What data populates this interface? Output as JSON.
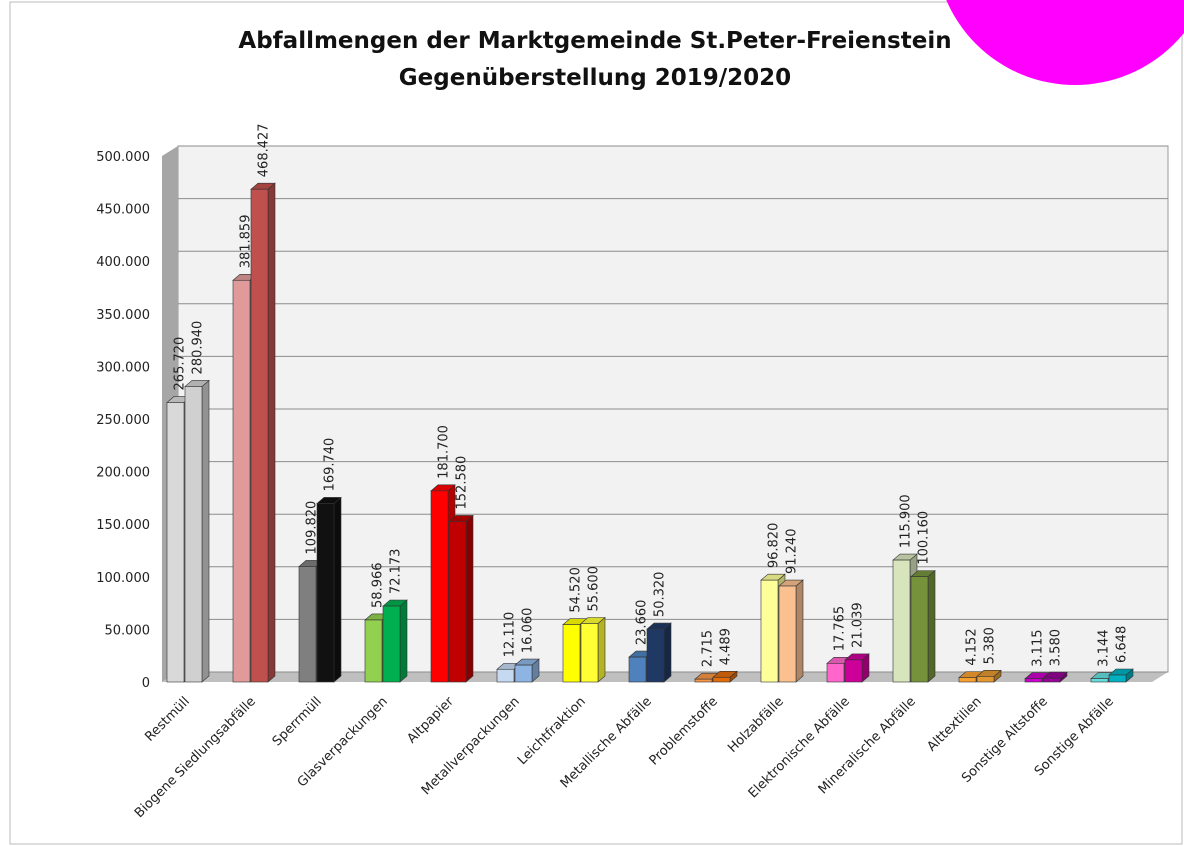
{
  "chart_data": {
    "type": "bar3d",
    "title": [
      "Abfallmengen der Marktgemeinde St.Peter-Freienstein",
      "Gegenüberstellung 2019/2020"
    ],
    "categories": [
      "Restmüll",
      "Biogene Siedlungsabfälle",
      "Sperrmüll",
      "Glasverpackungen",
      "Altpapier",
      "Metallverpackungen",
      "Leichtfraktion",
      "Metallische Abfälle",
      "Problemstoffe",
      "Holzabfälle",
      "Elektronische Abfälle",
      "Mineralische Abfälle",
      "Alttextilien",
      "Sonstige Altstoffe",
      "Sonstige Abfälle"
    ],
    "series": [
      {
        "values": [
          265720,
          381859,
          109820,
          58966,
          181700,
          12110,
          54520,
          23660,
          2715,
          96820,
          17765,
          115900,
          4152,
          3115,
          3144
        ],
        "value_labels": [
          "265.720",
          "381.859",
          "109.820",
          "58.966",
          "181.700",
          "12.110",
          "54.520",
          "23.660",
          "2.715",
          "96.820",
          "17.765",
          "115.900",
          "4.152",
          "3.115",
          "3.144"
        ],
        "colors": [
          "#d9d9d9",
          "#e09a9a",
          "#7f7f7f",
          "#92d050",
          "#ff0000",
          "#c5d9f1",
          "#ffff00",
          "#4f81bd",
          "#f79646",
          "#ffff99",
          "#ff66cc",
          "#d8e4bc",
          "#f7a030",
          "#cc00cc",
          "#66dddd"
        ]
      },
      {
        "values": [
          280940,
          468427,
          169740,
          72173,
          152580,
          16060,
          55600,
          50320,
          4489,
          91240,
          21039,
          100160,
          5380,
          3580,
          6648
        ],
        "value_labels": [
          "280.940",
          "468.427",
          "169.740",
          "72.173",
          "152.580",
          "16.060",
          "55.600",
          "50.320",
          "4.489",
          "91.240",
          "21.039",
          "100.160",
          "5.380",
          "3.580",
          "6.648"
        ],
        "colors": [
          "#d0d0d0",
          "#c0504d",
          "#111111",
          "#00b050",
          "#c00000",
          "#8db4e2",
          "#ffff33",
          "#1f3864",
          "#e26b0a",
          "#fac090",
          "#cc0099",
          "#76933c",
          "#e29830",
          "#990099",
          "#00b0c0"
        ]
      }
    ],
    "ylim": [
      0,
      500000
    ],
    "yticks": [
      0,
      {
        "value": 50000,
        "label": "50.000"
      },
      {
        "value": 100000,
        "label": "100.000"
      },
      {
        "value": 150000,
        "label": "150.000"
      },
      {
        "value": 200000,
        "label": "200.000"
      },
      {
        "value": 250000,
        "label": "250.000"
      },
      {
        "value": 300000,
        "label": "300.000"
      },
      {
        "value": 350000,
        "label": "350.000"
      },
      {
        "value": 400000,
        "label": "400.000"
      },
      {
        "value": 450000,
        "label": "450.000"
      },
      {
        "value": 500000,
        "label": "500.000"
      }
    ],
    "grid": true
  }
}
